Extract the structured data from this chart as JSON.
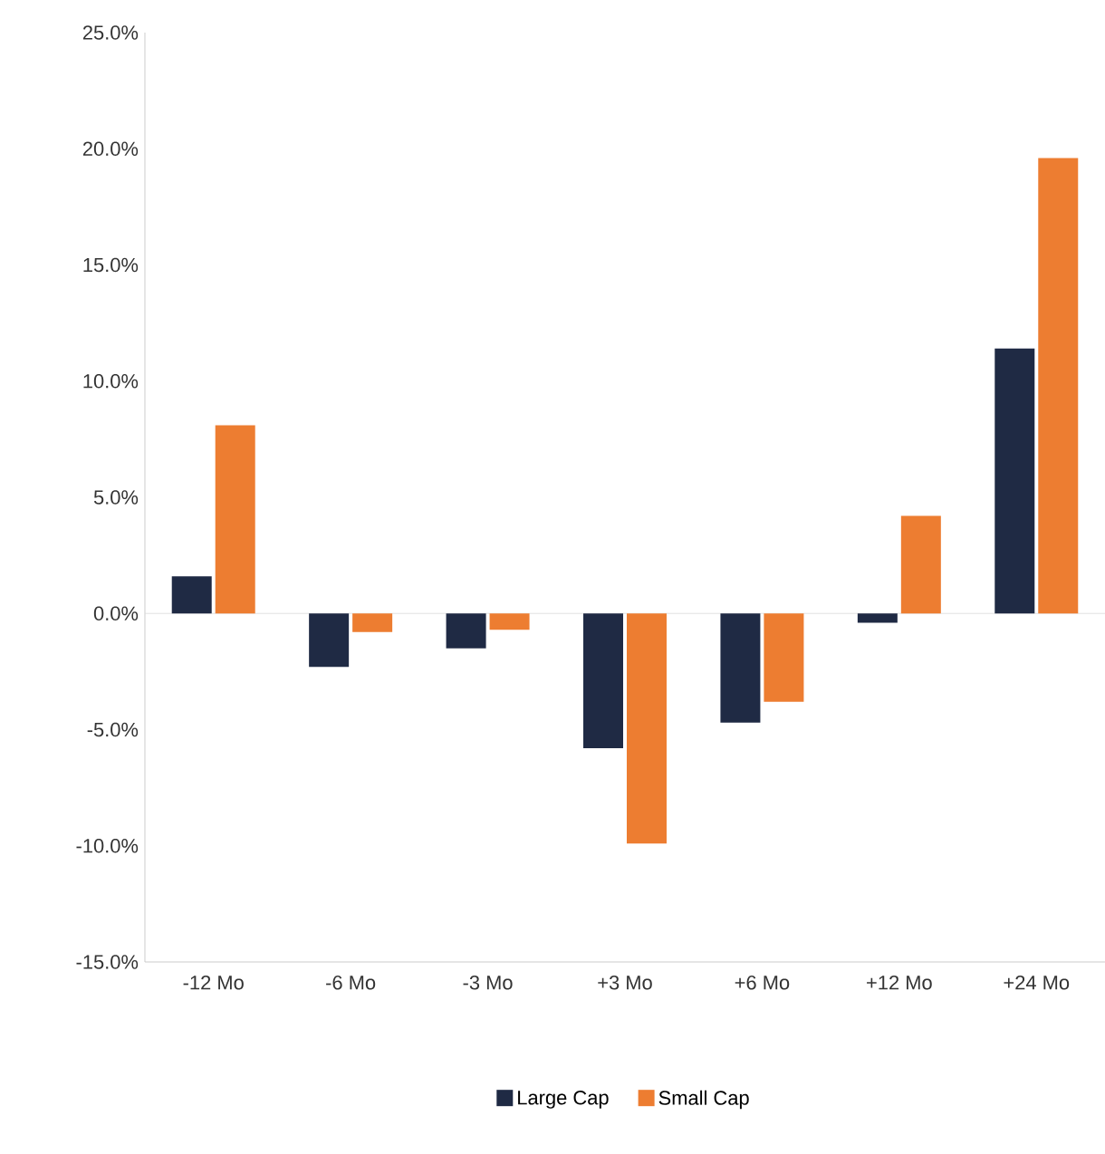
{
  "chart_data": {
    "type": "bar",
    "categories": [
      "-12 Mo",
      "-6 Mo",
      "-3 Mo",
      "+3 Mo",
      "+6 Mo",
      "+12 Mo",
      "+24 Mo"
    ],
    "series": [
      {
        "name": "Large Cap",
        "color": "#1f2a44",
        "values": [
          1.6,
          -2.3,
          -1.5,
          -5.8,
          -4.7,
          -0.4,
          11.4
        ]
      },
      {
        "name": "Small Cap",
        "color": "#ed7d31",
        "values": [
          8.1,
          -0.8,
          -0.7,
          -9.9,
          -3.8,
          4.2,
          19.6
        ]
      }
    ],
    "ylim": [
      -15,
      25
    ],
    "yticks": [
      {
        "value": -15,
        "label": "-15.0%"
      },
      {
        "value": -10,
        "label": "-10.0%"
      },
      {
        "value": -5,
        "label": "-5.0%"
      },
      {
        "value": 0,
        "label": "0.0%"
      },
      {
        "value": 5,
        "label": "5.0%"
      },
      {
        "value": 10,
        "label": "10.0%"
      },
      {
        "value": 15,
        "label": "15.0%"
      },
      {
        "value": 20,
        "label": "20.0%"
      },
      {
        "value": 25,
        "label": "25.0%"
      }
    ],
    "ref_lines": [
      {
        "axis": "y",
        "value": 0,
        "color": "#d9d9d9"
      }
    ],
    "grid": false,
    "legend": "bottom"
  }
}
